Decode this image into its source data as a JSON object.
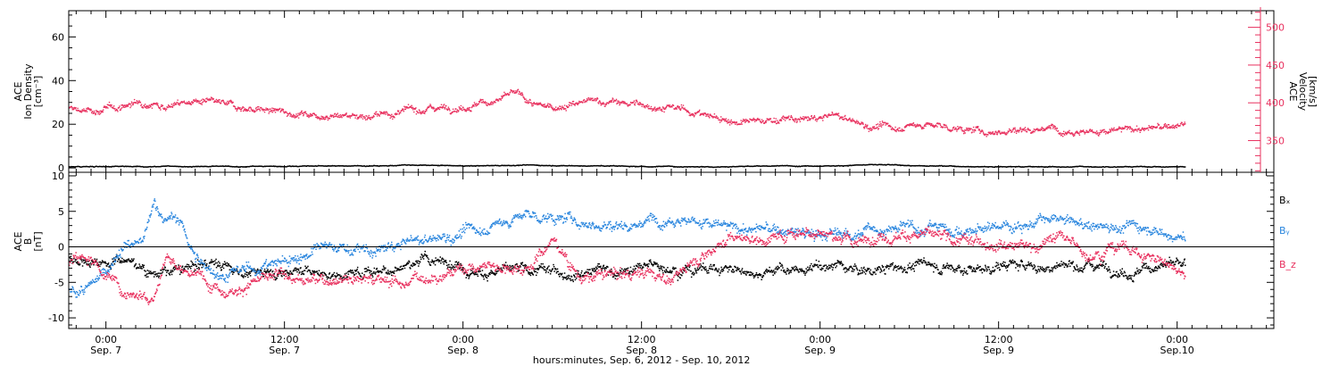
{
  "figure": {
    "xlabel": "hours:minutes, Sep. 6, 2012 - Sep. 10, 2012",
    "time_range_hours": [
      -2.5,
      78.5
    ],
    "data_end_hour": 72.5,
    "x_ticks": [
      {
        "hour": 0,
        "time": "0:00",
        "date": "Sep. 7"
      },
      {
        "hour": 12,
        "time": "12:00",
        "date": "Sep. 7"
      },
      {
        "hour": 24,
        "time": "0:00",
        "date": "Sep. 8"
      },
      {
        "hour": 36,
        "time": "12:00",
        "date": "Sep. 8"
      },
      {
        "hour": 48,
        "time": "0:00",
        "date": "Sep. 9"
      },
      {
        "hour": 60,
        "time": "12:00",
        "date": "Sep. 9"
      },
      {
        "hour": 72,
        "time": "0:00",
        "date": "Sep.10"
      }
    ]
  },
  "chart_data": [
    {
      "type": "scatter",
      "panel": "plasma",
      "ylabel_left": [
        "ACE",
        "Ion Density",
        "[cm⁻³]"
      ],
      "ylabel_right": [
        "ACE",
        "Velocity",
        "[km/s]"
      ],
      "ylim_left": [
        -2,
        72
      ],
      "yticks_left": [
        0,
        20,
        40,
        60
      ],
      "ylim_right": [
        308,
        522
      ],
      "yticks_right": [
        350,
        400,
        450,
        500
      ],
      "series": [
        {
          "axis": "left",
          "color": "#000000",
          "x_hours": [
            -2.5,
            0,
            4,
            8,
            12,
            16,
            20,
            24,
            28,
            32,
            36,
            40,
            44,
            48,
            52,
            56,
            60,
            64,
            68,
            72.5
          ],
          "values": [
            0.5,
            0.6,
            0.7,
            0.6,
            0.8,
            0.9,
            1.2,
            0.9,
            1.3,
            1.0,
            0.7,
            0.6,
            0.8,
            1.0,
            1.4,
            0.8,
            0.6,
            0.5,
            0.6,
            0.5
          ]
        },
        {
          "axis": "right",
          "color": "#e8305e",
          "x_hours": [
            -2.5,
            -1,
            1,
            2.5,
            4,
            6,
            8,
            10,
            12,
            14,
            16,
            18,
            20,
            22,
            24,
            26,
            27.5,
            29,
            31,
            33,
            35,
            37,
            39,
            41,
            43,
            45,
            47,
            49,
            51,
            53,
            55,
            57,
            59,
            61,
            63,
            65,
            67,
            69,
            71,
            72.5
          ],
          "values": [
            392,
            388,
            395,
            402,
            397,
            402,
            396,
            392,
            387,
            385,
            384,
            383,
            388,
            394,
            396,
            402,
            412,
            393,
            397,
            402,
            399,
            395,
            390,
            380,
            373,
            378,
            377,
            383,
            370,
            367,
            372,
            366,
            361,
            364,
            367,
            365,
            361,
            365,
            367,
            371
          ]
        }
      ]
    },
    {
      "type": "scatter",
      "panel": "magnetic field",
      "ylabel": [
        "ACE",
        "B",
        "[nT]"
      ],
      "ylim": [
        -11.5,
        10.5
      ],
      "yticks": [
        -10,
        -5,
        0,
        5,
        10
      ],
      "legend_position": "right",
      "series": [
        {
          "name": "Bₓ",
          "color": "#000000",
          "x_hours": [
            -2.5,
            -1,
            1,
            3,
            5,
            7,
            9,
            11,
            13,
            15,
            17,
            19,
            21,
            23,
            25,
            27,
            29,
            31,
            33,
            35,
            37,
            39,
            41,
            43,
            45,
            47,
            49,
            51,
            53,
            55,
            57,
            59,
            61,
            63,
            65,
            67,
            69,
            71,
            72.5
          ],
          "values": [
            -1.5,
            -2.0,
            -1.5,
            -3.5,
            -3.5,
            -2.0,
            -3.5,
            -3.5,
            -3.0,
            -4.0,
            -3.5,
            -3.0,
            -2.0,
            -2.0,
            -3.5,
            -3.5,
            -3.5,
            -3.5,
            -3.0,
            -3.5,
            -2.5,
            -3.0,
            -3.0,
            -3.5,
            -3.0,
            -3.5,
            -2.5,
            -3.5,
            -3.0,
            -2.5,
            -3.0,
            -3.0,
            -2.5,
            -3.0,
            -2.5,
            -2.5,
            -3.5,
            -2.5,
            -3.0
          ]
        },
        {
          "name": "Bᵧ",
          "color": "#2a86de",
          "x_hours": [
            -2.5,
            -1,
            1,
            2.5,
            3.2,
            4,
            5,
            6,
            8,
            10,
            12,
            14,
            16,
            18,
            20,
            22,
            24,
            26,
            28,
            30,
            32,
            34,
            36,
            38,
            40,
            42,
            44,
            46,
            48,
            50,
            52,
            54,
            56,
            58,
            60,
            62,
            64,
            66,
            68,
            70,
            72.5
          ],
          "values": [
            -6.5,
            -6.0,
            0.0,
            0.5,
            6.0,
            4.0,
            3.5,
            -2.0,
            -4.0,
            -3.0,
            -2.0,
            -0.5,
            0.0,
            -1.0,
            0.5,
            1.0,
            2.0,
            3.0,
            4.5,
            4.0,
            3.5,
            3.0,
            3.5,
            4.5,
            3.5,
            2.5,
            2.5,
            2.0,
            1.5,
            2.0,
            2.5,
            2.5,
            3.0,
            2.0,
            3.0,
            3.5,
            3.5,
            3.0,
            3.0,
            3.0,
            1.0
          ]
        },
        {
          "name": "B_z",
          "color": "#e8305e",
          "x_hours": [
            -2.5,
            -1,
            1,
            2,
            3.2,
            4,
            5,
            6,
            8,
            10,
            12,
            14,
            16,
            18,
            20,
            22,
            24,
            26,
            28,
            30,
            32,
            34,
            36,
            38,
            40,
            42,
            44,
            46,
            48,
            50,
            52,
            54,
            56,
            58,
            60,
            62,
            64,
            66,
            68,
            70,
            72.5
          ],
          "values": [
            -2.0,
            -1.5,
            -6.0,
            -6.5,
            -6.5,
            -1.0,
            -3.5,
            -4.0,
            -6.0,
            -5.0,
            -4.0,
            -5.0,
            -4.0,
            -4.5,
            -5.0,
            -4.0,
            -3.0,
            -2.5,
            -3.0,
            1.0,
            -4.5,
            -4.0,
            -3.5,
            -4.5,
            -1.0,
            1.5,
            1.0,
            2.0,
            2.5,
            0.5,
            1.5,
            2.0,
            1.0,
            0.5,
            1.0,
            0.0,
            1.5,
            -1.0,
            0.5,
            -1.5,
            -3.0
          ]
        }
      ]
    }
  ]
}
